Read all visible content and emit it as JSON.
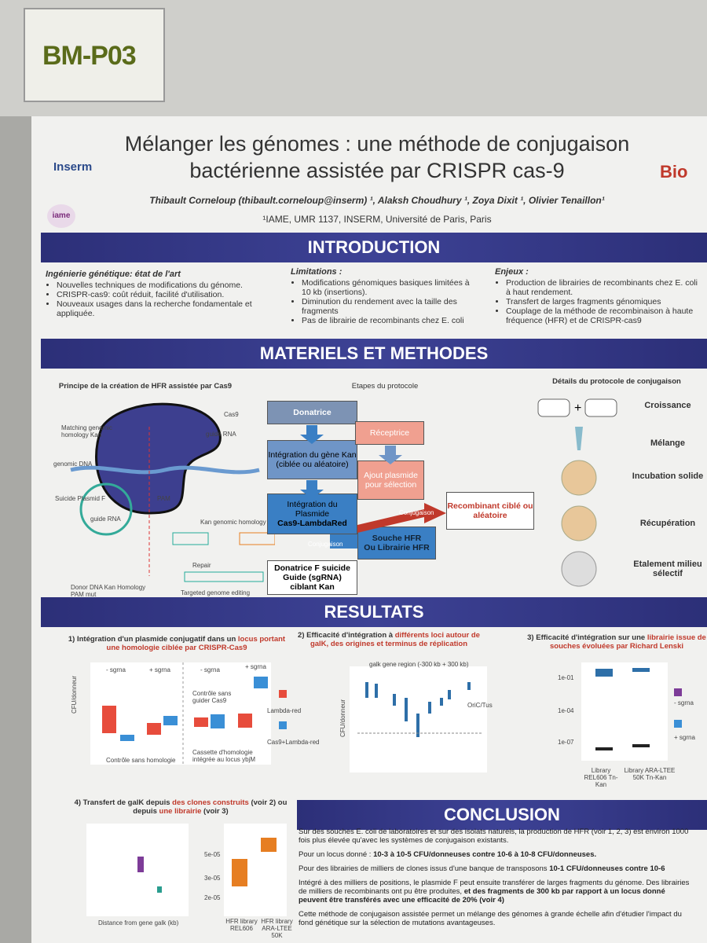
{
  "label": "BM-P03",
  "header": {
    "title_lines": [
      "Mélanger les génomes : une méthode de conjugaison",
      "bactérienne assistée par CRISPR cas-9"
    ],
    "authors": "Thibault Corneloup (thibault.corneloup@inserm) ¹, Alaksh Choudhury ¹, Zoya Dixit ¹, Olivier Tenaillon¹",
    "affiliation": "¹IAME, UMR 1137, INSERM, Université de Paris, Paris",
    "logos": [
      "Inserm",
      "iame",
      "Bio"
    ]
  },
  "introduction": {
    "heading": "INTRODUCTION",
    "columns": [
      {
        "title": "Ingénierie génétique: état de l'art",
        "items": [
          "Nouvelles techniques de modifications du génome.",
          "CRISPR-cas9: coût réduit, facilité d'utilisation.",
          "Nouveaux usages dans la recherche fondamentale et appliquée."
        ]
      },
      {
        "title": "Limitations :",
        "items": [
          "Modifications génomiques basiques limitées à 10 kb (insertions).",
          "Diminution du rendement avec la taille des fragments",
          "Pas de librairie de recombinants chez E. coli"
        ]
      },
      {
        "title": "Enjeux :",
        "items": [
          "Production de librairies de recombinants chez E. coli à haut rendement.",
          "Transfert de larges fragments génomiques",
          "Couplage de la méthode de recombinaison à haute fréquence (HFR) et de CRISPR-cas9"
        ]
      }
    ]
  },
  "methods": {
    "heading": "MATERIELS ET METHODES",
    "panel_titles": [
      "Principe de la création de HFR assistée par Cas9",
      "Etapes du protocole",
      "Détails du protocole de conjugaison"
    ],
    "diagram_labels": [
      "Cas9",
      "guide RNA",
      "Matching genomic homology Kan",
      "genomic DNA",
      "PAM",
      "Suicide Plasmid F",
      "guide RNA",
      "Kan genomic homology",
      "Repair",
      "Donor DNA Kan Homology PAM mut",
      "Targeted genome editing"
    ],
    "protocol": {
      "donatrice": "Donatrice",
      "integration_kan": "Intégration du gène Kan (ciblée ou aléatoire)",
      "integration_plasmide": [
        "Intégration du",
        "Plasmide",
        "Cas9-LambdaRed"
      ],
      "donatrice_f": [
        "Donatrice F suicide",
        "Guide (sgRNA)",
        "ciblant Kan"
      ],
      "receptrice": "Réceptrice",
      "ajout": "Ajout plasmide pour sélection",
      "souche": [
        "Souche HFR",
        "Ou Librairie HFR"
      ],
      "recombinant": "Recombinant ciblé ou aléatoire",
      "conjugaison_labels": [
        "Conjugaison",
        "Conjugaison"
      ]
    },
    "conjugation_steps": [
      "Croissance",
      "Mélange",
      "Incubation solide",
      "Récupération",
      "Etalement milieu sélectif"
    ]
  },
  "results": {
    "heading": "RESULTATS",
    "panel1": {
      "title": [
        "1) Intégration d'un plasmide conjugatif dans un ",
        "locus portant",
        " une homologie ciblée par CRISPR-Cas9"
      ],
      "labels": [
        "- sgrna",
        "+ sgrna",
        "- sgrna",
        "+ sgrna",
        "Contrôle sans guider Cas9",
        "Contrôle sans homologie",
        "Cassette d'homologie intégrée au locus ybjM",
        "CFU/donneur"
      ],
      "legend": [
        "Lambda-red",
        "Cas9+Lambda-red"
      ]
    },
    "panel2": {
      "title": [
        "2) Efficacité d'intégration à ",
        "différents loci",
        " autour de galK, des origines et terminus de réplication"
      ],
      "labels": [
        "galk gene region (-300 kb + 300 kb)",
        "OriC/Tus",
        "CFU/donneur"
      ]
    },
    "panel3": {
      "title": [
        "3) Efficacité d'intégration sur une ",
        "librairie issue",
        " de souches évoluées par Richard Lenski"
      ],
      "yticks": [
        "1e-01",
        "1e-04",
        "1e-07"
      ],
      "xlabels": [
        "Library REL606 Tn-Kan",
        "Library ARA-LTEE 50K Tn-Kan"
      ],
      "legend": [
        "- sgrna",
        "+ sgrna"
      ]
    },
    "panel4": {
      "title": [
        "4) Transfert de galK depuis ",
        "des clones construits",
        " (voir 2) ou depuis ",
        "une librairie",
        " (voir 3)"
      ],
      "yticks": [
        "5e-05",
        "3e-05",
        "2e-05"
      ],
      "xlabels": [
        "HFR library REL606",
        "HFR library ARA-LTEE 50K"
      ],
      "xaxis": "Distance from gene galk (kb)"
    }
  },
  "conclusion": {
    "heading": "CONCLUSION",
    "paragraphs": [
      [
        {
          "t": "Sur des souches E. coli de laboratoires et sur des isolats naturels, la production de HFR (voir 1, 2, 3) est environ 1000 fois plus élevée qu'avec les systèmes de conjugaison existants."
        }
      ],
      [
        {
          "t": "Pour un locus donné : "
        },
        {
          "t": "10-3 à 10-5 CFU/donneuses contre 10-6 à 10-8 CFU/donneuses.",
          "b": true
        }
      ],
      [
        {
          "t": "Pour des librairies de milliers de clones issus d'une banque de transposons "
        },
        {
          "t": "10-1 CFU/donneuses contre 10-6",
          "b": true
        }
      ],
      [
        {
          "t": "Intégré à des milliers de positions, le plasmide F peut ensuite transférer de larges fragments du génome. Des librairies de milliers de recombinants ont pu être produites, "
        },
        {
          "t": "et des fragments de 300 kb par rapport à un locus donné peuvent être transférés avec une efficacité de 20% (voir 4)",
          "b": true
        }
      ],
      [
        {
          "t": "Cette méthode de conjugaison assistée permet un mélange des génomes à grande échelle afin d'étudier l'impact du fond génétique sur la sélection de mutations avantageuses."
        }
      ]
    ]
  }
}
